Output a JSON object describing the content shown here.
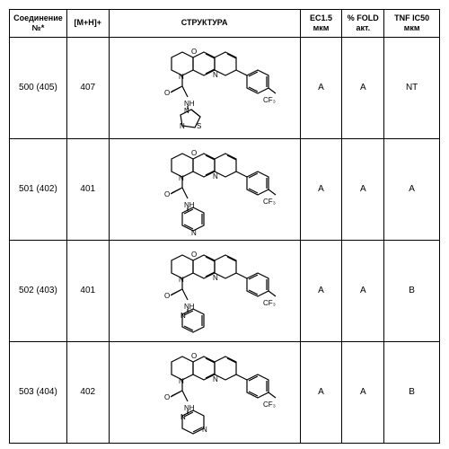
{
  "columns": {
    "compound": "Соединение\n№*",
    "mh": "[M+H]+",
    "struct": "СТРУКТУРА",
    "ec": "EC1.5\nмкм",
    "fold": "% FOLD\nакт.",
    "tnf": "TNF IC50\nмкм"
  },
  "rows": [
    {
      "compound": "500 (405)",
      "mh": "407",
      "ec": "A",
      "fold": "A",
      "tnf": "NT",
      "hetero": "thiazole"
    },
    {
      "compound": "501 (402)",
      "mh": "401",
      "ec": "A",
      "fold": "A",
      "tnf": "A",
      "hetero": "4-pyridyl"
    },
    {
      "compound": "502 (403)",
      "mh": "401",
      "ec": "A",
      "fold": "A",
      "tnf": "B",
      "hetero": "2-pyridyl"
    },
    {
      "compound": "503 (404)",
      "mh": "402",
      "ec": "A",
      "fold": "A",
      "tnf": "B",
      "hetero": "pyrazinyl"
    }
  ],
  "colors": {
    "bond": "#000000",
    "text": "#000000"
  }
}
